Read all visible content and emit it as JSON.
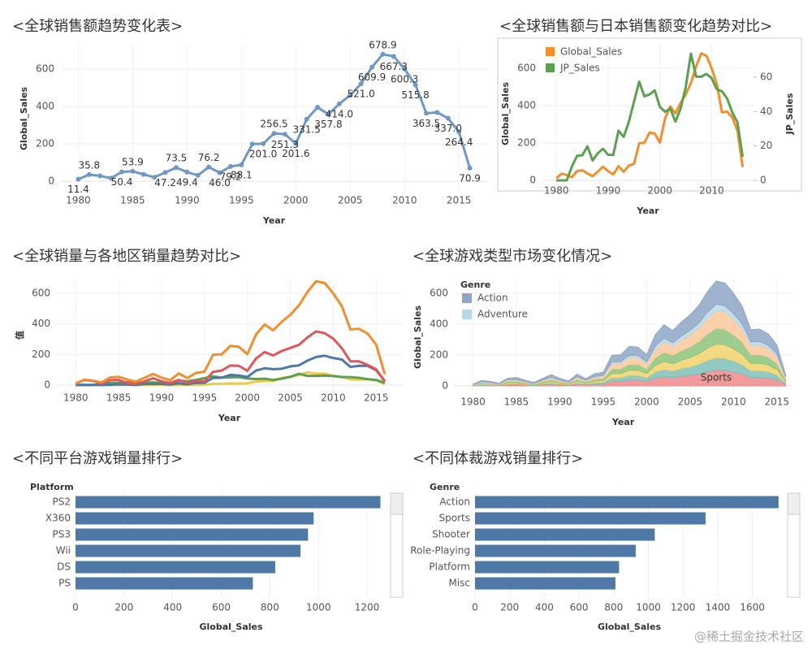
{
  "chart_data": [
    {
      "type": "line",
      "title": "<全球销售额趋势变化表>",
      "x_label": "Year",
      "y_label": "Global_Sales",
      "x": [
        1980,
        1981,
        1982,
        1983,
        1984,
        1985,
        1986,
        1987,
        1988,
        1989,
        1990,
        1991,
        1992,
        1993,
        1994,
        1995,
        1996,
        1997,
        1998,
        1999,
        2000,
        2001,
        2002,
        2003,
        2004,
        2005,
        2006,
        2007,
        2008,
        2009,
        2010,
        2011,
        2012,
        2013,
        2014,
        2015,
        2016
      ],
      "values": [
        11.4,
        35.8,
        28.9,
        16.8,
        50.4,
        53.9,
        37.1,
        21.7,
        47.2,
        73.5,
        49.4,
        32.2,
        76.2,
        46.0,
        79.2,
        88.1,
        199.2,
        201.0,
        256.5,
        251.3,
        201.6,
        331.5,
        395.5,
        357.8,
        414.0,
        459.9,
        521.0,
        609.9,
        678.9,
        667.3,
        600.3,
        515.8,
        363.5,
        368.1,
        337.0,
        264.4,
        70.9
      ],
      "value_labels": [
        "11.4",
        "35.8",
        null,
        null,
        "50.4",
        "53.9",
        null,
        null,
        "47.2",
        "73.5",
        "49.4",
        null,
        "76.2",
        "46.0",
        "79.2",
        "88.1",
        null,
        "201.0",
        "256.5",
        "251.3",
        "201.6",
        "331.5",
        null,
        "357.8",
        "414.0",
        null,
        "521.0",
        "609.9",
        "678.9",
        "667.3",
        "600.3",
        "515.8",
        "363.5",
        null,
        "337.0",
        "264.4",
        "70.9"
      ],
      "color": "#7098c5",
      "markers": true,
      "grid": true,
      "xlim": [
        1978.4,
        2017.6
      ],
      "xticks": [
        1980,
        1985,
        1990,
        1995,
        2000,
        2005,
        2010,
        2015
      ],
      "ylim": [
        -60,
        730
      ],
      "yticks": [
        0,
        200,
        400,
        600
      ]
    },
    {
      "type": "line",
      "title": "<全球销售额与日本销售额变化趋势对比>",
      "x_label": "Year",
      "y_label": "Global_Sales",
      "y2_label": "JP_Sales",
      "legend": "top-left",
      "grid": true,
      "border": true,
      "x": [
        1980,
        1981,
        1982,
        1983,
        1984,
        1985,
        1986,
        1987,
        1988,
        1989,
        1990,
        1991,
        1992,
        1993,
        1994,
        1995,
        1996,
        1997,
        1998,
        1999,
        2000,
        2001,
        2002,
        2003,
        2004,
        2005,
        2006,
        2007,
        2008,
        2009,
        2010,
        2011,
        2012,
        2013,
        2014,
        2015,
        2016
      ],
      "series": [
        {
          "name": "Global_Sales",
          "color": "#f28e2b",
          "values": [
            11,
            36,
            29,
            17,
            50,
            54,
            37,
            22,
            47,
            73,
            49,
            32,
            76,
            46,
            79,
            88,
            199,
            201,
            256,
            251,
            202,
            331,
            396,
            358,
            414,
            460,
            521,
            610,
            679,
            667,
            600,
            516,
            364,
            368,
            337,
            264,
            71
          ]
        },
        {
          "name": "JP_Sales",
          "color": "#59a14f",
          "axis": "y2",
          "values": [
            0,
            0,
            0,
            8.1,
            14.3,
            14.6,
            19.8,
            11.6,
            15.8,
            18.4,
            14.9,
            14.8,
            28.9,
            25.3,
            34.0,
            45.8,
            57.4,
            48.9,
            50.0,
            52.3,
            42.8,
            39.9,
            41.8,
            34.2,
            41.7,
            54.3,
            73.7,
            60.3,
            60.3,
            61.9,
            59.5,
            53.0,
            51.8,
            47.6,
            39.5,
            33.7,
            13.7
          ]
        }
      ],
      "xlim": [
        1977.3,
        2018.1
      ],
      "xticks": [
        1980,
        1990,
        2000,
        2010
      ],
      "ylim": [
        -13,
        726
      ],
      "yticks": [
        0,
        200,
        400,
        600
      ],
      "y2lim": [
        -1.4,
        78.9
      ],
      "y2ticks": [
        0,
        20,
        40,
        60
      ]
    },
    {
      "type": "line",
      "title": "<全球销量与各地区销量趋势对比>",
      "x_label": "Year",
      "y_label": "值",
      "grid": true,
      "x": [
        1980,
        1981,
        1982,
        1983,
        1984,
        1985,
        1986,
        1987,
        1988,
        1989,
        1990,
        1991,
        1992,
        1993,
        1994,
        1995,
        1996,
        1997,
        1998,
        1999,
        2000,
        2001,
        2002,
        2003,
        2004,
        2005,
        2006,
        2007,
        2008,
        2009,
        2010,
        2011,
        2012,
        2013,
        2014,
        2015,
        2016
      ],
      "series": [
        {
          "color": "#edc948",
          "values": [
            0,
            0,
            0,
            0,
            1,
            1,
            2,
            0,
            1,
            2,
            1,
            0,
            2,
            1,
            2,
            3,
            8,
            9,
            11,
            10,
            12,
            23,
            27,
            26,
            47,
            55,
            67,
            83,
            75,
            75,
            60,
            54,
            38,
            36,
            38,
            31,
            8
          ]
        },
        {
          "color": "#59a14f",
          "values": [
            0,
            0,
            0,
            8,
            14,
            15,
            20,
            12,
            16,
            18,
            15,
            15,
            29,
            25,
            34,
            46,
            57,
            49,
            50,
            52,
            43,
            40,
            42,
            34,
            42,
            54,
            74,
            60,
            60,
            62,
            59,
            53,
            52,
            48,
            39,
            34,
            14
          ]
        },
        {
          "color": "#4e79a7",
          "values": [
            1,
            2,
            2,
            1,
            2,
            5,
            3,
            1,
            7,
            8,
            8,
            4,
            12,
            5,
            15,
            15,
            47,
            48,
            67,
            63,
            53,
            95,
            110,
            104,
            107,
            122,
            129,
            160,
            184,
            192,
            177,
            167,
            119,
            126,
            126,
            98,
            27
          ]
        },
        {
          "color": "#e15759",
          "values": [
            11,
            33,
            27,
            8,
            33,
            34,
            13,
            8,
            24,
            45,
            25,
            13,
            34,
            15,
            28,
            25,
            87,
            95,
            128,
            126,
            94,
            174,
            216,
            194,
            223,
            243,
            263,
            312,
            351,
            339,
            304,
            241,
            155,
            155,
            132,
            103,
            23
          ]
        },
        {
          "color": "#f28e2b",
          "values": [
            11,
            36,
            29,
            17,
            50,
            54,
            37,
            22,
            47,
            73,
            49,
            32,
            76,
            46,
            79,
            88,
            199,
            201,
            256,
            251,
            202,
            331,
            396,
            358,
            414,
            460,
            521,
            610,
            679,
            667,
            600,
            516,
            364,
            368,
            337,
            264,
            71
          ]
        }
      ],
      "xlim": [
        1977.8,
        2018
      ],
      "xticks": [
        1980,
        1985,
        1990,
        1995,
        2000,
        2005,
        2010,
        2015
      ],
      "ylim": [
        -32,
        685
      ],
      "yticks": [
        0,
        200,
        400,
        600
      ]
    },
    {
      "type": "area",
      "stacked": true,
      "title": "<全球游戏类型市场变化情况>",
      "x_label": "Year",
      "y_label": "Global_Sales",
      "grid": true,
      "legend": "top-left",
      "legend_title": "Genre",
      "annotation": "Sports",
      "x": [
        1980,
        1981,
        1982,
        1983,
        1984,
        1985,
        1986,
        1987,
        1988,
        1989,
        1990,
        1991,
        1992,
        1993,
        1994,
        1995,
        1996,
        1997,
        1998,
        1999,
        2000,
        2001,
        2002,
        2003,
        2004,
        2005,
        2006,
        2007,
        2008,
        2009,
        2010,
        2011,
        2012,
        2013,
        2014,
        2015,
        2016
      ],
      "series": [
        {
          "color": "#ef8a8b",
          "values": [
            2,
            5,
            4,
            3,
            8,
            8,
            6,
            3,
            7,
            11,
            7,
            5,
            11,
            7,
            12,
            13,
            30,
            30,
            38,
            38,
            30,
            50,
            59,
            54,
            62,
            69,
            78,
            92,
            102,
            100,
            90,
            77,
            55,
            55,
            51,
            40,
            11
          ]
        },
        {
          "color": "#7fbfbb",
          "values": [
            1,
            4,
            3,
            2,
            6,
            6,
            4,
            3,
            6,
            9,
            6,
            4,
            9,
            6,
            9,
            11,
            24,
            24,
            31,
            30,
            24,
            40,
            48,
            43,
            50,
            55,
            63,
            73,
            81,
            80,
            72,
            62,
            44,
            44,
            40,
            32,
            9
          ]
        },
        {
          "color": "#f1d36c",
          "values": [
            1,
            5,
            4,
            2,
            7,
            7,
            5,
            3,
            6,
            9,
            6,
            4,
            10,
            6,
            10,
            11,
            26,
            26,
            33,
            33,
            26,
            43,
            51,
            47,
            54,
            60,
            68,
            79,
            88,
            87,
            78,
            67,
            47,
            48,
            44,
            34,
            9
          ]
        },
        {
          "color": "#8cc47a",
          "values": [
            2,
            5,
            4,
            3,
            8,
            8,
            6,
            3,
            7,
            11,
            7,
            5,
            11,
            7,
            12,
            13,
            30,
            30,
            38,
            38,
            30,
            50,
            59,
            54,
            62,
            69,
            78,
            92,
            102,
            100,
            90,
            77,
            55,
            55,
            51,
            40,
            11
          ]
        },
        {
          "color": "#f9c99b",
          "values": [
            2,
            6,
            5,
            3,
            9,
            9,
            6,
            4,
            8,
            12,
            8,
            5,
            13,
            8,
            13,
            15,
            34,
            34,
            44,
            43,
            34,
            56,
            67,
            61,
            70,
            78,
            89,
            104,
            115,
            113,
            102,
            88,
            62,
            63,
            57,
            45,
            12
          ]
        },
        {
          "name": "Adventure",
          "color": "#b7d8e8",
          "values": [
            1,
            2,
            2,
            1,
            3,
            3,
            2,
            1,
            3,
            4,
            3,
            2,
            5,
            3,
            5,
            5,
            12,
            12,
            15,
            15,
            12,
            20,
            24,
            21,
            25,
            28,
            31,
            37,
            41,
            40,
            36,
            31,
            22,
            22,
            20,
            16,
            4
          ]
        },
        {
          "name": "Action",
          "color": "#8ea5c6",
          "values": [
            2,
            9,
            7,
            3,
            9,
            13,
            8,
            5,
            10,
            17,
            12,
            7,
            17,
            9,
            18,
            20,
            43,
            45,
            57,
            54,
            46,
            72,
            88,
            78,
            91,
            101,
            114,
            133,
            150,
            147,
            132,
            114,
            79,
            81,
            74,
            57,
            15
          ]
        }
      ],
      "xlim": [
        1977.9,
        2016.7
      ],
      "xticks": [
        1980,
        1985,
        1990,
        1995,
        2000,
        2005,
        2010,
        2015
      ],
      "ylim": [
        -53,
        684
      ],
      "yticks": [
        0,
        200,
        400,
        600
      ]
    },
    {
      "type": "barh",
      "title": "<不同平台游戏销量排行>",
      "header": "Platform",
      "x_label": "Global_Sales",
      "color": "#4e79a7",
      "grid": true,
      "categories": [
        "PS2",
        "X360",
        "PS3",
        "Wii",
        "DS",
        "PS"
      ],
      "values": [
        1255,
        980,
        957,
        926,
        822,
        730
      ],
      "xlim": [
        0,
        1280
      ],
      "xticks": [
        0,
        200,
        400,
        600,
        800,
        1000,
        1200
      ]
    },
    {
      "type": "barh",
      "title": "<不同体裁游戏销量排行>",
      "header": "Genre",
      "x_label": "Global_Sales",
      "color": "#4e79a7",
      "grid": true,
      "categories": [
        "Action",
        "Sports",
        "Shooter",
        "Role-Playing",
        "Platform",
        "Misc"
      ],
      "values": [
        1751,
        1330,
        1037,
        927,
        831,
        810
      ],
      "xlim": [
        0,
        1780
      ],
      "xticks": [
        0,
        200,
        400,
        600,
        800,
        1000,
        1200,
        1400,
        1600
      ]
    }
  ],
  "watermark": "@稀土掘金技术社区"
}
